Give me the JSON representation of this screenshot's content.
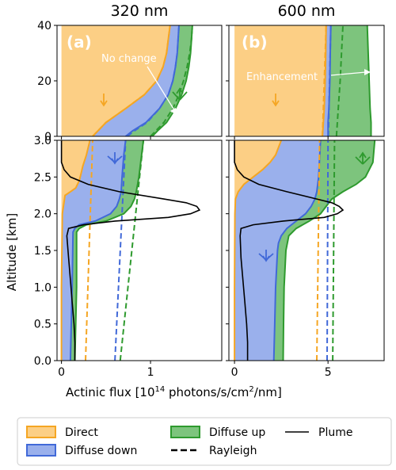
{
  "figure": {
    "titles": [
      "320 nm",
      "600 nm"
    ],
    "panel_labels": [
      "(a)",
      "(b)"
    ],
    "ylabel": "Altitude [km]",
    "xlabel_main": "Actinic flux [10",
    "xlabel_exp": "14",
    "xlabel_rest": " photons/s/cm",
    "xlabel_exp2": "2",
    "xlabel_end": "/nm]",
    "annotations": {
      "a": "No change",
      "b": "Enhancement"
    },
    "legend": [
      "Direct",
      "Diffuse down",
      "Diffuse up",
      "Rayleigh",
      "Plume"
    ],
    "colors": {
      "direct": "#f5a623",
      "direct_fill": "#fccf85",
      "down": "#4169d8",
      "down_fill": "#9ab0ec",
      "up": "#2e9a2e",
      "up_fill": "#7dc47d",
      "plume": "#000000"
    }
  },
  "chart_data": [
    {
      "type": "area",
      "panel": "(a) 320 nm",
      "xlim": [
        -0.05,
        1.8
      ],
      "xticks": [
        "0",
        "1"
      ],
      "upper": {
        "ylim": [
          0,
          40
        ],
        "yticks": [
          "0",
          "20",
          "40"
        ]
      },
      "lower": {
        "ylim": [
          0,
          3.0
        ],
        "yticks": [
          "0.0",
          "0.5",
          "1.0",
          "1.5",
          "2.0",
          "2.5",
          "3.0"
        ]
      },
      "series": [
        {
          "name": "Direct",
          "kind": "area",
          "upper": [
            [
              0,
              0.35
            ],
            [
              5,
              0.5
            ],
            [
              10,
              0.72
            ],
            [
              15,
              0.93
            ],
            [
              20,
              1.07
            ],
            [
              25,
              1.14
            ],
            [
              30,
              1.18
            ],
            [
              35,
              1.2
            ],
            [
              40,
              1.22
            ]
          ],
          "lower": [
            [
              0.0,
              0.0
            ],
            [
              1.0,
              0.0
            ],
            [
              2.0,
              0.01
            ],
            [
              2.25,
              0.04
            ],
            [
              2.3,
              0.1
            ],
            [
              2.35,
              0.16
            ],
            [
              2.45,
              0.2
            ],
            [
              2.55,
              0.22
            ],
            [
              2.65,
              0.24
            ],
            [
              2.8,
              0.28
            ],
            [
              3.0,
              0.32
            ]
          ]
        },
        {
          "name": "Diffuse down",
          "kind": "area",
          "upper": [
            [
              0,
              0.72
            ],
            [
              2,
              0.8
            ],
            [
              5,
              0.95
            ],
            [
              10,
              1.1
            ],
            [
              15,
              1.2
            ],
            [
              20,
              1.25
            ],
            [
              25,
              1.28
            ],
            [
              30,
              1.3
            ],
            [
              35,
              1.31
            ],
            [
              40,
              1.32
            ]
          ],
          "lower": [
            [
              0.0,
              0.1
            ],
            [
              1.0,
              0.12
            ],
            [
              1.75,
              0.13
            ],
            [
              1.8,
              0.15
            ],
            [
              1.85,
              0.2
            ],
            [
              1.9,
              0.38
            ],
            [
              2.0,
              0.55
            ],
            [
              2.1,
              0.62
            ],
            [
              2.2,
              0.65
            ],
            [
              2.3,
              0.67
            ],
            [
              2.5,
              0.68
            ],
            [
              2.8,
              0.7
            ],
            [
              3.0,
              0.72
            ]
          ]
        },
        {
          "name": "Diffuse up",
          "kind": "area",
          "upper": [
            [
              0,
              1.02
            ],
            [
              2,
              1.08
            ],
            [
              5,
              1.18
            ],
            [
              10,
              1.28
            ],
            [
              15,
              1.35
            ],
            [
              20,
              1.4
            ],
            [
              25,
              1.43
            ],
            [
              30,
              1.45
            ],
            [
              35,
              1.46
            ],
            [
              40,
              1.47
            ]
          ],
          "lower": [
            [
              0.0,
              0.15
            ],
            [
              1.0,
              0.17
            ],
            [
              1.75,
              0.17
            ],
            [
              1.8,
              0.2
            ],
            [
              1.85,
              0.28
            ],
            [
              1.9,
              0.5
            ],
            [
              2.0,
              0.7
            ],
            [
              2.1,
              0.78
            ],
            [
              2.2,
              0.82
            ],
            [
              2.3,
              0.84
            ],
            [
              2.5,
              0.87
            ],
            [
              2.8,
              0.9
            ],
            [
              3.0,
              0.92
            ]
          ]
        },
        {
          "name": "Rayleigh (Direct)",
          "kind": "dashed",
          "upper": [
            [
              0,
              0.35
            ],
            [
              5,
              0.5
            ],
            [
              10,
              0.72
            ],
            [
              15,
              0.93
            ],
            [
              20,
              1.07
            ],
            [
              25,
              1.14
            ],
            [
              30,
              1.18
            ],
            [
              35,
              1.2
            ],
            [
              40,
              1.22
            ]
          ],
          "lower": [
            [
              0.0,
              0.27
            ],
            [
              3.0,
              0.35
            ]
          ]
        },
        {
          "name": "Rayleigh (Diffuse down)",
          "kind": "dashed",
          "upper": [
            [
              0,
              0.74
            ],
            [
              2,
              0.82
            ],
            [
              5,
              0.96
            ],
            [
              10,
              1.1
            ],
            [
              15,
              1.2
            ],
            [
              20,
              1.25
            ],
            [
              25,
              1.28
            ],
            [
              30,
              1.3
            ],
            [
              35,
              1.31
            ],
            [
              40,
              1.32
            ]
          ],
          "lower": [
            [
              0.0,
              0.6
            ],
            [
              3.0,
              0.72
            ]
          ]
        },
        {
          "name": "Rayleigh (Diffuse up)",
          "kind": "dashed",
          "upper": [
            [
              0,
              1.0
            ],
            [
              2,
              1.06
            ],
            [
              5,
              1.15
            ],
            [
              10,
              1.25
            ],
            [
              15,
              1.32
            ],
            [
              20,
              1.37
            ],
            [
              25,
              1.41
            ],
            [
              30,
              1.44
            ],
            [
              35,
              1.46
            ],
            [
              40,
              1.47
            ]
          ],
          "lower": [
            [
              0.0,
              0.66
            ],
            [
              3.0,
              0.92
            ]
          ]
        },
        {
          "name": "Plume",
          "kind": "line",
          "lower": [
            [
              0.0,
              0.15
            ],
            [
              0.25,
              0.15
            ],
            [
              0.5,
              0.14
            ],
            [
              0.8,
              0.12
            ],
            [
              1.1,
              0.1
            ],
            [
              1.4,
              0.08
            ],
            [
              1.7,
              0.06
            ],
            [
              1.8,
              0.08
            ],
            [
              1.85,
              0.25
            ],
            [
              1.9,
              0.6
            ],
            [
              1.95,
              1.2
            ],
            [
              2.0,
              1.45
            ],
            [
              2.05,
              1.55
            ],
            [
              2.1,
              1.52
            ],
            [
              2.15,
              1.4
            ],
            [
              2.2,
              1.15
            ],
            [
              2.3,
              0.65
            ],
            [
              2.4,
              0.3
            ],
            [
              2.5,
              0.1
            ],
            [
              2.6,
              0.03
            ],
            [
              2.7,
              0.0
            ],
            [
              3.0,
              0.0
            ]
          ]
        }
      ]
    },
    {
      "type": "area",
      "panel": "(b) 600 nm",
      "xlim": [
        -0.3,
        8.0
      ],
      "xticks": [
        "0",
        "5"
      ],
      "upper": {
        "ylim": [
          0,
          40
        ],
        "yticks": [
          "0",
          "20",
          "40"
        ]
      },
      "lower": {
        "ylim": [
          0,
          3.0
        ],
        "yticks": [
          "0.0",
          "0.5",
          "1.0",
          "1.5",
          "2.0",
          "2.5",
          "3.0"
        ]
      },
      "series": [
        {
          "name": "Direct",
          "kind": "area",
          "upper": [
            [
              0,
              4.7
            ],
            [
              5,
              4.75
            ],
            [
              10,
              4.8
            ],
            [
              20,
              4.85
            ],
            [
              30,
              4.88
            ],
            [
              40,
              4.9
            ]
          ],
          "lower": [
            [
              0.0,
              0.0
            ],
            [
              1.0,
              0.0
            ],
            [
              2.0,
              0.02
            ],
            [
              2.2,
              0.05
            ],
            [
              2.3,
              0.2
            ],
            [
              2.4,
              0.5
            ],
            [
              2.5,
              1.0
            ],
            [
              2.6,
              1.5
            ],
            [
              2.7,
              1.9
            ],
            [
              2.8,
              2.2
            ],
            [
              3.0,
              2.5
            ]
          ]
        },
        {
          "name": "Diffuse down",
          "kind": "area",
          "upper": [
            [
              0,
              5.0
            ],
            [
              5,
              5.0
            ],
            [
              10,
              5.05
            ],
            [
              20,
              5.1
            ],
            [
              30,
              5.12
            ],
            [
              40,
              5.15
            ]
          ],
          "lower": [
            [
              0.0,
              2.1
            ],
            [
              0.5,
              2.15
            ],
            [
              1.0,
              2.2
            ],
            [
              1.5,
              2.3
            ],
            [
              1.6,
              2.35
            ],
            [
              1.7,
              2.5
            ],
            [
              1.8,
              2.8
            ],
            [
              1.9,
              3.3
            ],
            [
              2.0,
              3.8
            ],
            [
              2.1,
              4.1
            ],
            [
              2.2,
              4.3
            ],
            [
              2.3,
              4.4
            ],
            [
              2.5,
              4.5
            ],
            [
              3.0,
              4.6
            ]
          ]
        },
        {
          "name": "Diffuse up",
          "kind": "area",
          "upper": [
            [
              0,
              7.3
            ],
            [
              5,
              7.3
            ],
            [
              10,
              7.25
            ],
            [
              20,
              7.2
            ],
            [
              30,
              7.15
            ],
            [
              40,
              7.1
            ]
          ],
          "lower": [
            [
              0.0,
              2.6
            ],
            [
              0.5,
              2.62
            ],
            [
              1.0,
              2.65
            ],
            [
              1.5,
              2.75
            ],
            [
              1.7,
              2.9
            ],
            [
              1.8,
              3.3
            ],
            [
              1.9,
              4.0
            ],
            [
              2.0,
              4.6
            ],
            [
              2.1,
              4.9
            ],
            [
              2.2,
              5.2
            ],
            [
              2.3,
              5.8
            ],
            [
              2.4,
              6.5
            ],
            [
              2.5,
              7.0
            ],
            [
              2.7,
              7.4
            ],
            [
              3.0,
              7.5
            ]
          ]
        },
        {
          "name": "Rayleigh (Direct)",
          "kind": "dashed",
          "upper": [
            [
              0,
              4.7
            ],
            [
              40,
              4.9
            ]
          ],
          "lower": [
            [
              0.0,
              4.4
            ],
            [
              3.0,
              4.55
            ]
          ]
        },
        {
          "name": "Rayleigh (Diffuse down)",
          "kind": "dashed",
          "upper": [
            [
              0,
              5.02
            ],
            [
              40,
              5.15
            ]
          ],
          "lower": [
            [
              0.0,
              4.95
            ],
            [
              3.0,
              5.0
            ]
          ]
        },
        {
          "name": "Rayleigh (Diffuse up)",
          "kind": "dashed",
          "upper": [
            [
              0,
              5.45
            ],
            [
              10,
              5.55
            ],
            [
              20,
              5.65
            ],
            [
              30,
              5.72
            ],
            [
              40,
              5.8
            ]
          ],
          "lower": [
            [
              0.0,
              5.25
            ],
            [
              3.0,
              5.35
            ]
          ]
        },
        {
          "name": "Plume",
          "kind": "line",
          "lower": [
            [
              0.0,
              0.7
            ],
            [
              0.25,
              0.7
            ],
            [
              0.5,
              0.65
            ],
            [
              0.8,
              0.55
            ],
            [
              1.1,
              0.45
            ],
            [
              1.4,
              0.35
            ],
            [
              1.7,
              0.3
            ],
            [
              1.8,
              0.35
            ],
            [
              1.85,
              1.0
            ],
            [
              1.9,
              2.6
            ],
            [
              1.95,
              4.8
            ],
            [
              2.0,
              5.5
            ],
            [
              2.05,
              5.8
            ],
            [
              2.1,
              5.6
            ],
            [
              2.15,
              5.2
            ],
            [
              2.2,
              4.4
            ],
            [
              2.3,
              2.8
            ],
            [
              2.4,
              1.3
            ],
            [
              2.5,
              0.5
            ],
            [
              2.6,
              0.15
            ],
            [
              2.7,
              0.0
            ],
            [
              3.0,
              0.0
            ]
          ]
        }
      ]
    }
  ]
}
